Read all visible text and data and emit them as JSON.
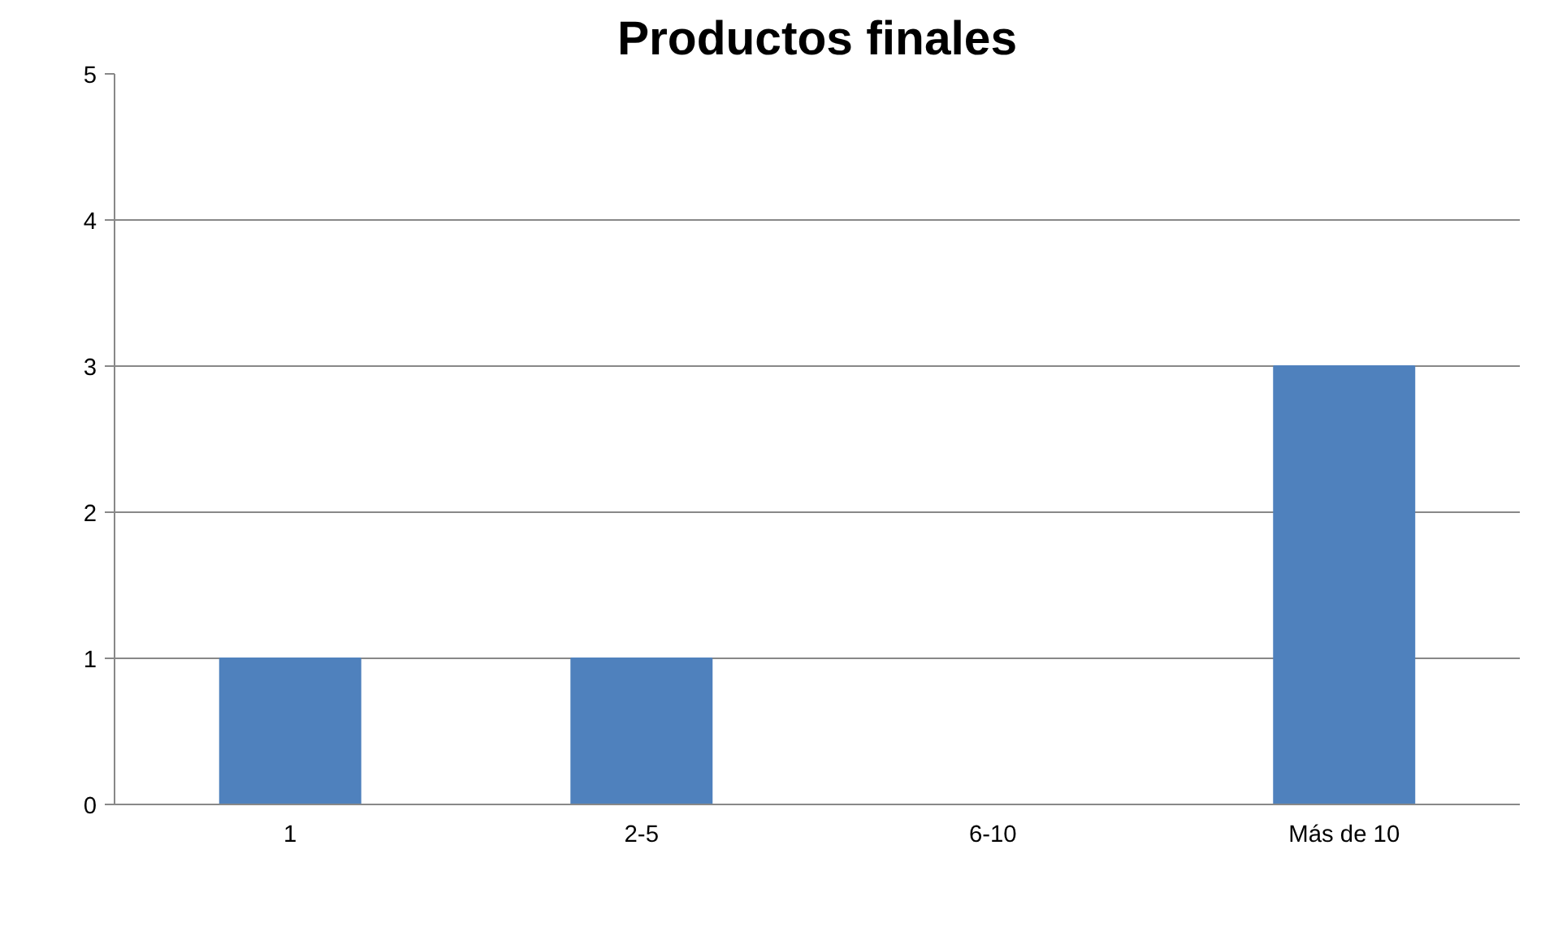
{
  "chart_data": {
    "type": "bar",
    "title": "Productos finales",
    "categories": [
      "1",
      "2-5",
      "6-10",
      "Más de 10"
    ],
    "values": [
      1,
      1,
      0,
      3
    ],
    "color": "#4f81bd",
    "ylim": [
      0,
      5
    ],
    "yticks": [
      0,
      1,
      2,
      3,
      4,
      5
    ],
    "grid": "y"
  }
}
